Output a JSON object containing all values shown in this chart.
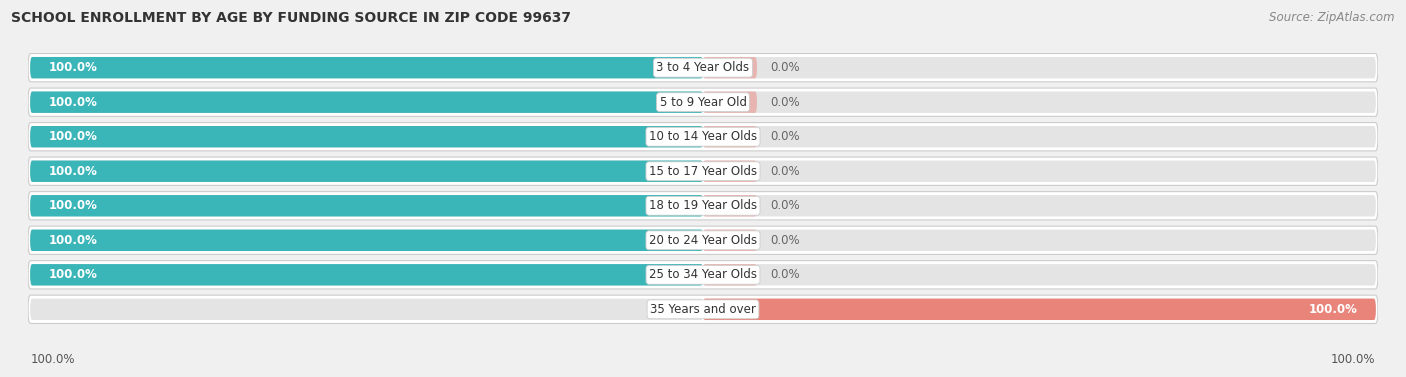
{
  "title": "SCHOOL ENROLLMENT BY AGE BY FUNDING SOURCE IN ZIP CODE 99637",
  "source": "Source: ZipAtlas.com",
  "categories": [
    "3 to 4 Year Olds",
    "5 to 9 Year Old",
    "10 to 14 Year Olds",
    "15 to 17 Year Olds",
    "18 to 19 Year Olds",
    "20 to 24 Year Olds",
    "25 to 34 Year Olds",
    "35 Years and over"
  ],
  "public_values": [
    100.0,
    100.0,
    100.0,
    100.0,
    100.0,
    100.0,
    100.0,
    0.0
  ],
  "private_values": [
    0.0,
    0.0,
    0.0,
    0.0,
    0.0,
    0.0,
    0.0,
    100.0
  ],
  "public_color": "#3ab5b8",
  "private_color": "#e8847a",
  "private_small_color": "#e8b4b0",
  "bg_color": "#f0f0f0",
  "bar_bg_color": "#e4e4e4",
  "row_bg_color": "#ffffff",
  "title_fontsize": 10,
  "label_fontsize": 8.5,
  "category_fontsize": 8.5,
  "source_fontsize": 8.5
}
